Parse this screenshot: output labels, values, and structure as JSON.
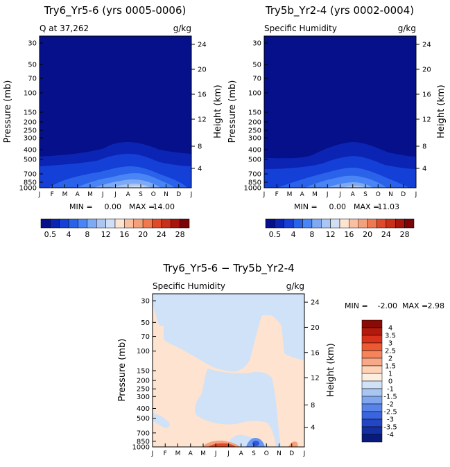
{
  "colors": {
    "plot1_fill": "#0a1aa0",
    "plot2_fill": "#0a1aa0",
    "blue_levels": [
      "#05108a",
      "#0b24b4",
      "#1540d8",
      "#2a63ea",
      "#4a85f5",
      "#7eaaf5",
      "#aac6f2",
      "#cfdff5"
    ],
    "diff_neg_light": "#cfe2f8",
    "diff_pos_light": "#fde3d0",
    "diff_pos_mid": "#f5a07a",
    "diff_pos_high": "#e04a28",
    "diff_neg_mid": "#6b95ee",
    "diff_neg_high": "#2f58de"
  },
  "chart_data": [
    {
      "type": "heatmap",
      "title": "Try6_Yr5-6 (yrs 0005-0006)",
      "subtitle_left": "Q at 37,262",
      "subtitle_right": "g/kg",
      "ylabel": "Pressure (mb)",
      "y2label": "Height (km)",
      "x_ticks": [
        "J",
        "F",
        "M",
        "A",
        "M",
        "J",
        "J",
        "A",
        "S",
        "O",
        "N",
        "D",
        "J"
      ],
      "y_ticks": [
        "30",
        "50",
        "70",
        "100",
        "150",
        "200",
        "250",
        "300",
        "400",
        "500",
        "700",
        "850",
        "1000"
      ],
      "y2_ticks": [
        "24",
        "20",
        "16",
        "12",
        "8",
        "4"
      ],
      "min_label": "MIN =",
      "min_value": "0.00",
      "max_label": "MAX =",
      "max_value": "14.00",
      "colorbar_labels": [
        "0.5",
        "4",
        "8",
        "12",
        "16",
        "20",
        "24",
        "28"
      ]
    },
    {
      "type": "heatmap",
      "title": "Try5b_Yr2-4 (yrs 0002-0004)",
      "subtitle_left": "Specific Humidity",
      "subtitle_right": "g/kg",
      "ylabel": "Pressure (mb)",
      "y2label": "Height (km)",
      "x_ticks": [
        "J",
        "F",
        "M",
        "A",
        "M",
        "J",
        "J",
        "A",
        "S",
        "O",
        "N",
        "D",
        "J"
      ],
      "y_ticks": [
        "30",
        "50",
        "70",
        "100",
        "150",
        "200",
        "250",
        "300",
        "400",
        "500",
        "700",
        "850",
        "1000"
      ],
      "y2_ticks": [
        "24",
        "20",
        "16",
        "12",
        "8",
        "4"
      ],
      "min_label": "MIN =",
      "min_value": "0.00",
      "max_label": "MAX =",
      "max_value": "11.03",
      "colorbar_labels": [
        "0.5",
        "4",
        "8",
        "12",
        "16",
        "20",
        "24",
        "28"
      ]
    },
    {
      "type": "heatmap",
      "title": "Try6_Yr5-6 − Try5b_Yr2-4",
      "subtitle_left": "Specific Humidity",
      "subtitle_right": "g/kg",
      "ylabel": "Pressure (mb)",
      "y2label": "Height (km)",
      "x_ticks": [
        "J",
        "F",
        "M",
        "A",
        "M",
        "J",
        "J",
        "A",
        "S",
        "O",
        "N",
        "D",
        "J"
      ],
      "y_ticks": [
        "30",
        "50",
        "70",
        "100",
        "150",
        "200",
        "250",
        "300",
        "400",
        "500",
        "700",
        "850",
        "1000"
      ],
      "y2_ticks": [
        "24",
        "20",
        "16",
        "12",
        "8",
        "4"
      ],
      "min_label": "MIN =",
      "min_value": "-2.00",
      "max_label": "MAX =",
      "max_value": "2.98",
      "colorbar_labels": [
        "4",
        "3.5",
        "3",
        "2.5",
        "2",
        "1.5",
        "1",
        "0",
        "-1",
        "-1.5",
        "-2",
        "-2.5",
        "-3",
        "-3.5",
        "-4"
      ]
    }
  ]
}
